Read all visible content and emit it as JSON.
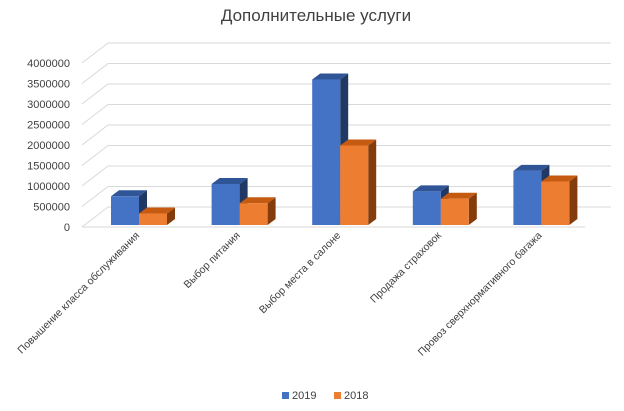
{
  "chart_data": {
    "type": "bar",
    "title": "Дополнительные услуги",
    "categories": [
      "Повышение класса обслуживания",
      "Выбор питания",
      "Выбор места в салоне",
      "Продажа страховок",
      "Провоз сверхнормативного багажа"
    ],
    "series": [
      {
        "name": "2019",
        "values": [
          700000,
          1000000,
          3550000,
          820000,
          1320000
        ],
        "color": "#4472C4",
        "top_color": "#2F5597",
        "side_color": "#1F3864"
      },
      {
        "name": "2018",
        "values": [
          280000,
          530000,
          1940000,
          640000,
          1060000
        ],
        "color": "#ED7D31",
        "top_color": "#C55A11",
        "side_color": "#843C0C"
      }
    ],
    "y_ticks": [
      "0",
      "500000",
      "1000000",
      "1500000",
      "2000000",
      "2500000",
      "3000000",
      "3500000",
      "4000000"
    ],
    "ylim": [
      0,
      4000000
    ],
    "legend_position": "bottom",
    "grid": true,
    "style": "3d-clustered-column"
  }
}
